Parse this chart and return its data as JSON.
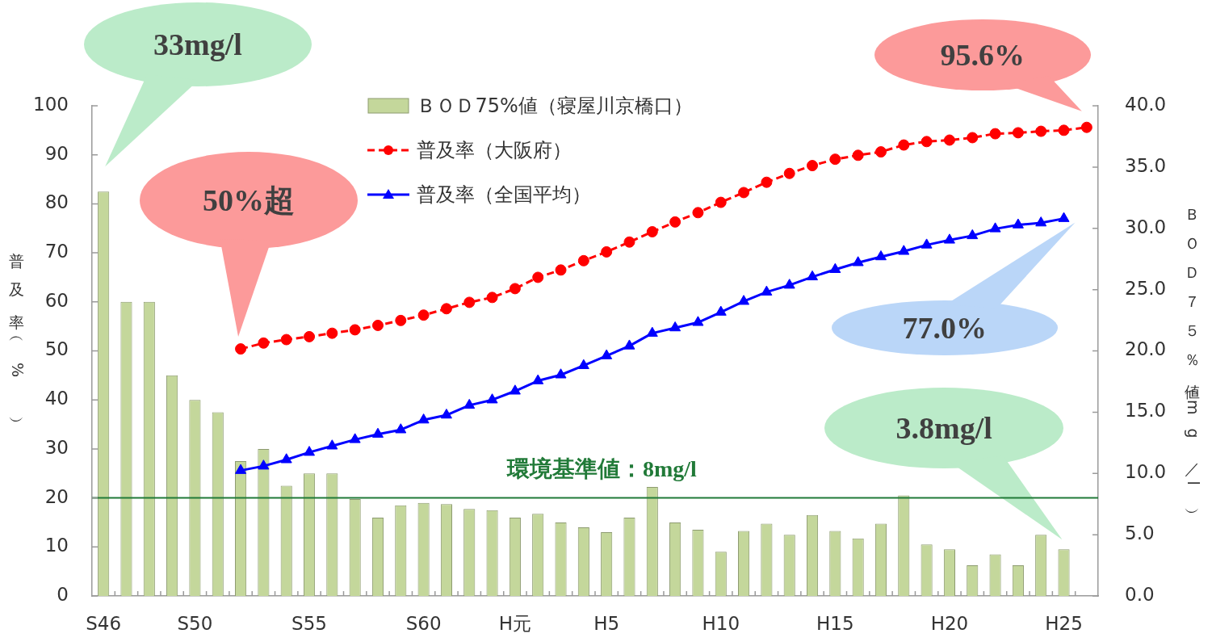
{
  "chart_data": {
    "type": "bar",
    "categories": [
      "S46",
      null,
      null,
      null,
      "S50",
      null,
      null,
      null,
      null,
      "S55",
      null,
      null,
      null,
      null,
      "S60",
      null,
      null,
      null,
      "H元",
      null,
      null,
      null,
      "H5",
      null,
      null,
      null,
      null,
      "H10",
      null,
      null,
      null,
      null,
      "H15",
      null,
      null,
      null,
      null,
      "H20",
      null,
      null,
      null,
      null,
      "H25",
      null
    ],
    "series": [
      {
        "name": "ＢＯＤ75%値（寝屋川京橋口）",
        "axis": "y2",
        "color": "#c4d79b",
        "values": [
          33,
          24,
          24,
          18,
          16,
          15,
          11,
          12,
          9,
          10,
          10,
          7.9,
          6.4,
          7.4,
          7.6,
          7.5,
          7.1,
          7.0,
          6.4,
          6.7,
          6.0,
          5.6,
          5.2,
          6.4,
          8.9,
          6.0,
          5.4,
          3.6,
          5.3,
          5.9,
          5.0,
          6.6,
          5.3,
          4.7,
          5.9,
          8.2,
          4.2,
          3.8,
          2.5,
          3.4,
          2.5,
          5.0,
          3.8,
          null
        ]
      },
      {
        "name": "普及率（大阪府）",
        "type": "line",
        "color": "#ff0000",
        "marker": "circle",
        "line_style": "dashed",
        "values": [
          null,
          null,
          null,
          null,
          null,
          null,
          50.4,
          51.6,
          52.3,
          52.9,
          53.6,
          54.3,
          55.2,
          56.2,
          57.3,
          58.6,
          59.9,
          60.9,
          62.7,
          65.0,
          66.5,
          68.4,
          70.2,
          72.2,
          74.3,
          76.3,
          78.2,
          80.3,
          82.3,
          84.4,
          86.2,
          87.8,
          89.1,
          89.9,
          90.6,
          92.0,
          92.7,
          93.0,
          93.5,
          94.3,
          94.5,
          94.8,
          95.0,
          95.6
        ]
      },
      {
        "name": "普及率（全国平均）",
        "type": "line",
        "color": "#0000ff",
        "marker": "triangle",
        "line_style": "solid",
        "values": [
          null,
          null,
          null,
          null,
          null,
          null,
          25.6,
          26.5,
          27.8,
          29.3,
          30.6,
          31.9,
          33.0,
          33.9,
          35.9,
          36.9,
          38.9,
          40.0,
          41.8,
          43.9,
          45.1,
          47.0,
          49.0,
          51.0,
          53.6,
          54.7,
          55.8,
          57.9,
          60.1,
          62.0,
          63.4,
          65.1,
          66.6,
          68.0,
          69.2,
          70.3,
          71.6,
          72.6,
          73.5,
          74.9,
          75.7,
          76.1,
          77.0,
          null
        ]
      }
    ],
    "ylabel": "普及率（%）",
    "y2label": "ＢＯＤ７５％値（mg／l）",
    "ylim": [
      0,
      100
    ],
    "yticks": [
      0,
      10,
      20,
      30,
      40,
      50,
      60,
      70,
      80,
      90,
      100
    ],
    "y2lim": [
      0,
      40
    ],
    "y2ticks": [
      {
        "value": 0,
        "label": "0.0"
      },
      {
        "value": 5,
        "label": "5.0"
      },
      {
        "value": 10,
        "label": "10.0"
      },
      {
        "value": 15,
        "label": "15.0"
      },
      {
        "value": 20,
        "label": "20.0"
      },
      {
        "value": 25,
        "label": "25.0"
      },
      {
        "value": 30,
        "label": "30.0"
      },
      {
        "value": 35,
        "label": "35.0"
      },
      {
        "value": 40,
        "label": "40.0"
      }
    ],
    "ref_lines": [
      {
        "axis": "y2",
        "value": 8,
        "label": "環境基準値：8mg/l",
        "color": "#217a38"
      }
    ],
    "annotations": [
      "33mg/l",
      "50%超",
      "95.6%",
      "77.0%",
      "3.8mg/l"
    ],
    "legend": "top"
  }
}
